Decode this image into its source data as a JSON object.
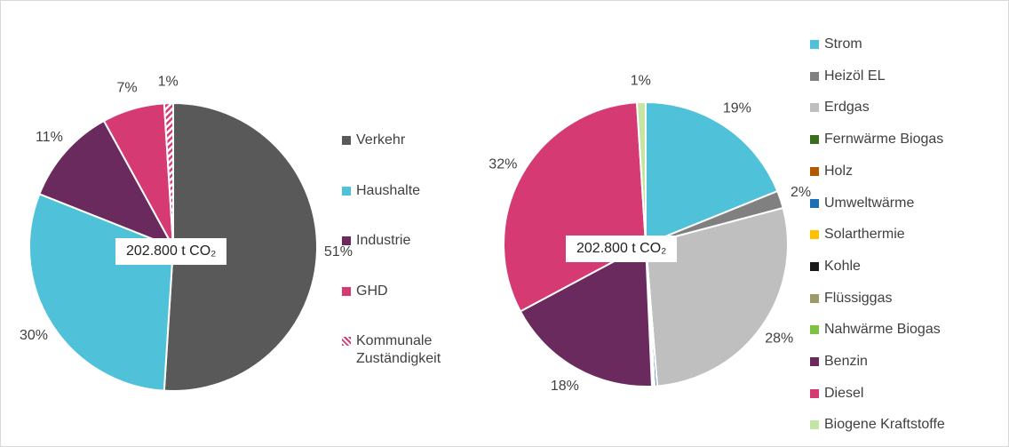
{
  "chart_data": [
    {
      "type": "pie",
      "center_label": "202.800 t CO₂",
      "categories": [
        "Verkehr",
        "Haushalte",
        "Industrie",
        "GHD",
        "Kommunale Zuständigkeit"
      ],
      "values": [
        51,
        30,
        11,
        7,
        1
      ],
      "value_labels": [
        "51%",
        "30%",
        "11%",
        "7%",
        "1%"
      ],
      "colors": [
        "#595959",
        "#4fc1d9",
        "#6b2a5e",
        "#d63a72",
        "#d63a72"
      ],
      "hatched": [
        false,
        false,
        false,
        false,
        true
      ]
    },
    {
      "type": "pie",
      "center_label": "202.800 t CO₂",
      "categories": [
        "Strom",
        "Heizöl EL",
        "Erdgas",
        "Fernwärme Biogas",
        "Holz",
        "Umweltwärme",
        "Solarthermie",
        "Kohle",
        "Flüssiggas",
        "Nahwärme Biogas",
        "Benzin",
        "Diesel",
        "Biogene Kraftstoffe"
      ],
      "values": [
        19,
        2,
        28,
        0,
        0,
        0.3,
        0,
        0,
        0.2,
        0.1,
        18,
        32,
        1
      ],
      "value_labels": [
        "19%",
        "2%",
        "28%",
        null,
        null,
        null,
        null,
        null,
        null,
        null,
        "18%",
        "32%",
        "1%"
      ],
      "colors": [
        "#4fc1d9",
        "#808080",
        "#bfbfbf",
        "#3a6e1f",
        "#b35a00",
        "#1f6fb5",
        "#ffc000",
        "#1a1a1a",
        "#9b9b6b",
        "#7dc242",
        "#6b2a5e",
        "#d63a72",
        "#c5e5a5"
      ],
      "hatched": [
        false,
        false,
        false,
        false,
        false,
        false,
        false,
        false,
        false,
        false,
        false,
        false,
        false
      ]
    }
  ]
}
